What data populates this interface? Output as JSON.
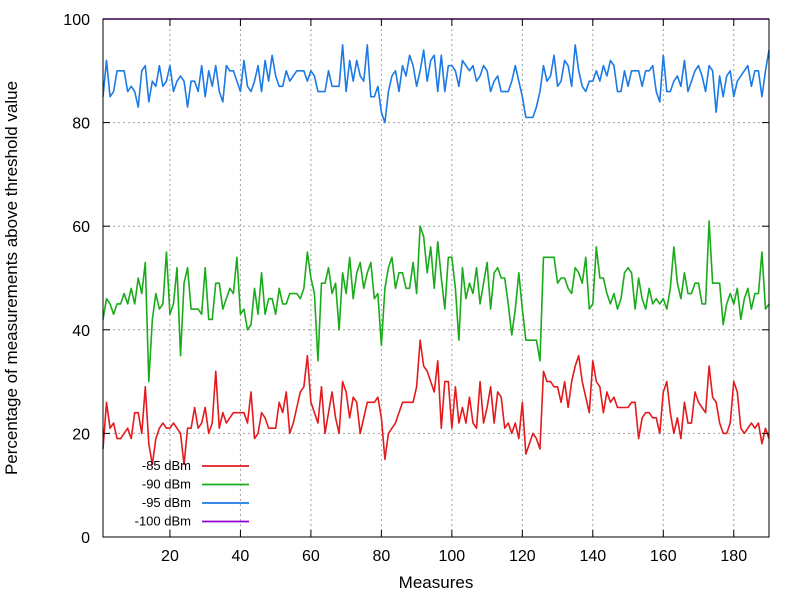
{
  "chart_data": {
    "type": "line",
    "title": "",
    "xlabel": "Measures",
    "ylabel": "Percentage of measurements above threshold value",
    "xlim": [
      1,
      190
    ],
    "ylim": [
      0,
      100
    ],
    "x_ticks": [
      20,
      40,
      60,
      80,
      100,
      120,
      140,
      160,
      180
    ],
    "y_ticks": [
      0,
      20,
      40,
      60,
      80,
      100
    ],
    "grid": true,
    "legend_position": "bottom-left",
    "series": [
      {
        "name": "-85 dBm",
        "color": "#e41a1c",
        "values": [
          17,
          26,
          21,
          22,
          19,
          19,
          20,
          21,
          19,
          24,
          24,
          20,
          29,
          18,
          14,
          19,
          21,
          22,
          21,
          21,
          22,
          21,
          20,
          14,
          21,
          21,
          25,
          21,
          22,
          25,
          20,
          22,
          32,
          21,
          24,
          22,
          23,
          24,
          24,
          24,
          24,
          22,
          28,
          19,
          20,
          24,
          23,
          21,
          21,
          21,
          26,
          24,
          28,
          20,
          22,
          25,
          28,
          29,
          35,
          26,
          24,
          22,
          29,
          20,
          24,
          28,
          23,
          20,
          30,
          28,
          23,
          27,
          26,
          20,
          23,
          26,
          26,
          26,
          27,
          23,
          15,
          20,
          21,
          22,
          24,
          26,
          26,
          26,
          26,
          29,
          38,
          33,
          32,
          30,
          28,
          34,
          21,
          30,
          30,
          21,
          29,
          22,
          25,
          22,
          27,
          22,
          21,
          30,
          22,
          25,
          29,
          22,
          28,
          27,
          21,
          22,
          20,
          22,
          19,
          26,
          16,
          18,
          20,
          19,
          17,
          32,
          30,
          30,
          29,
          29,
          26,
          30,
          25,
          30,
          33,
          35,
          30,
          27,
          24,
          34,
          30,
          29,
          24,
          28,
          26,
          27,
          25,
          25,
          25,
          25,
          26,
          26,
          19,
          23,
          24,
          24,
          23,
          23,
          20,
          28,
          30,
          24,
          20,
          23,
          19,
          26,
          22,
          22,
          28,
          26,
          25,
          24,
          33,
          27,
          26,
          22,
          20,
          20,
          22,
          30,
          28,
          21,
          20,
          21,
          22,
          21,
          22,
          18,
          21,
          19
        ]
      },
      {
        "name": "-90 dBm",
        "color": "#1aab1a",
        "values": [
          42,
          46,
          45,
          43,
          45,
          45,
          47,
          45,
          48,
          45,
          50,
          47,
          53,
          30,
          42,
          47,
          44,
          45,
          55,
          43,
          45,
          52,
          35,
          49,
          52,
          44,
          44,
          44,
          43,
          52,
          42,
          42,
          49,
          49,
          44,
          46,
          48,
          47,
          54,
          43,
          44,
          40,
          41,
          48,
          43,
          51,
          43,
          46,
          46,
          43,
          48,
          45,
          45,
          47,
          47,
          47,
          46,
          48,
          55,
          50,
          47,
          34,
          49,
          49,
          52,
          47,
          49,
          40,
          51,
          47,
          54,
          46,
          51,
          53,
          48,
          51,
          53,
          46,
          47,
          37,
          48,
          52,
          54,
          48,
          51,
          51,
          48,
          48,
          53,
          47,
          60,
          58,
          51,
          56,
          48,
          57,
          50,
          44,
          54,
          54,
          48,
          38,
          52,
          46,
          49,
          47,
          52,
          45,
          49,
          53,
          44,
          51,
          52,
          50,
          50,
          45,
          39,
          44,
          51,
          44,
          38,
          38,
          38,
          38,
          34,
          54,
          54,
          54,
          54,
          49,
          50,
          50,
          48,
          47,
          52,
          51,
          49,
          54,
          44,
          45,
          56,
          50,
          50,
          47,
          45,
          47,
          44,
          46,
          51,
          52,
          51,
          44,
          50,
          46,
          44,
          48,
          45,
          46,
          45,
          46,
          44,
          48,
          56,
          49,
          46,
          51,
          47,
          47,
          49,
          49,
          45,
          45,
          61,
          49,
          49,
          49,
          41,
          45,
          47,
          45,
          48,
          42,
          46,
          48,
          44,
          47,
          47,
          55,
          44,
          45
        ]
      },
      {
        "name": "-95 dBm",
        "color": "#1c7ae4",
        "values": [
          85,
          92,
          85,
          86,
          90,
          90,
          90,
          86,
          87,
          86,
          83,
          90,
          91,
          84,
          88,
          87,
          91,
          87,
          88,
          91,
          86,
          88,
          89,
          88,
          83,
          88,
          88,
          86,
          91,
          85,
          90,
          87,
          91,
          86,
          84,
          91,
          90,
          90,
          88,
          86,
          92,
          87,
          86,
          88,
          91,
          86,
          92,
          88,
          93,
          89,
          87,
          87,
          90,
          88,
          89,
          90,
          90,
          90,
          88,
          90,
          89,
          86,
          86,
          86,
          90,
          87,
          87,
          87,
          95,
          86,
          92,
          88,
          92,
          89,
          88,
          95,
          85,
          85,
          87,
          82,
          80,
          86,
          89,
          90,
          86,
          91,
          89,
          93,
          91,
          87,
          90,
          94,
          88,
          92,
          93,
          86,
          93,
          86,
          91,
          91,
          90,
          87,
          92,
          91,
          90,
          91,
          88,
          89,
          91,
          90,
          86,
          88,
          89,
          86,
          86,
          86,
          88,
          91,
          88,
          85,
          81,
          81,
          81,
          83,
          86,
          91,
          88,
          89,
          93,
          87,
          88,
          92,
          91,
          87,
          95,
          90,
          87,
          86,
          88,
          88,
          90,
          88,
          91,
          89,
          92,
          91,
          86,
          86,
          90,
          87,
          90,
          90,
          90,
          87,
          90,
          90,
          91,
          86,
          84,
          93,
          86,
          86,
          88,
          89,
          87,
          92,
          86,
          88,
          90,
          91,
          89,
          86,
          91,
          90,
          82,
          89,
          85,
          89,
          90,
          85,
          88,
          89,
          90,
          91,
          87,
          90,
          90,
          85,
          90,
          94
        ]
      },
      {
        "name": "-100 dBm",
        "color": "#9400d3",
        "values": [
          100,
          100,
          100,
          100,
          100,
          100,
          100,
          100,
          100,
          100,
          100,
          100,
          100,
          100,
          100,
          100,
          100,
          100,
          100,
          100,
          100,
          100,
          100,
          100,
          100,
          100,
          100,
          100,
          100,
          100,
          100,
          100,
          100,
          100,
          100,
          100,
          100,
          100,
          100,
          100,
          100,
          100,
          100,
          100,
          100,
          100,
          100,
          100,
          100,
          100,
          100,
          100,
          100,
          100,
          100,
          100,
          100,
          100,
          100,
          100,
          100,
          100,
          100,
          100,
          100,
          100,
          100,
          100,
          100,
          100,
          100,
          100,
          100,
          100,
          100,
          100,
          100,
          100,
          100,
          100,
          100,
          100,
          100,
          100,
          100,
          100,
          100,
          100,
          100,
          100,
          100,
          100,
          100,
          100,
          100,
          100,
          100,
          100,
          100,
          100,
          100,
          100,
          100,
          100,
          100,
          100,
          100,
          100,
          100,
          100,
          100,
          100,
          100,
          100,
          100,
          100,
          100,
          100,
          100,
          100,
          100,
          100,
          100,
          100,
          100,
          100,
          100,
          100,
          100,
          100,
          100,
          100,
          100,
          100,
          100,
          100,
          100,
          100,
          100,
          100,
          100,
          100,
          100,
          100,
          100,
          100,
          100,
          100,
          100,
          100,
          100,
          100,
          100,
          100,
          100,
          100,
          100,
          100,
          100,
          100,
          100,
          100,
          100,
          100,
          100,
          100,
          100,
          100,
          100,
          100,
          100,
          100,
          100,
          100,
          100,
          100,
          100,
          100,
          100,
          100,
          100,
          100,
          100,
          100,
          100,
          100,
          100,
          100,
          100,
          100
        ]
      }
    ]
  }
}
